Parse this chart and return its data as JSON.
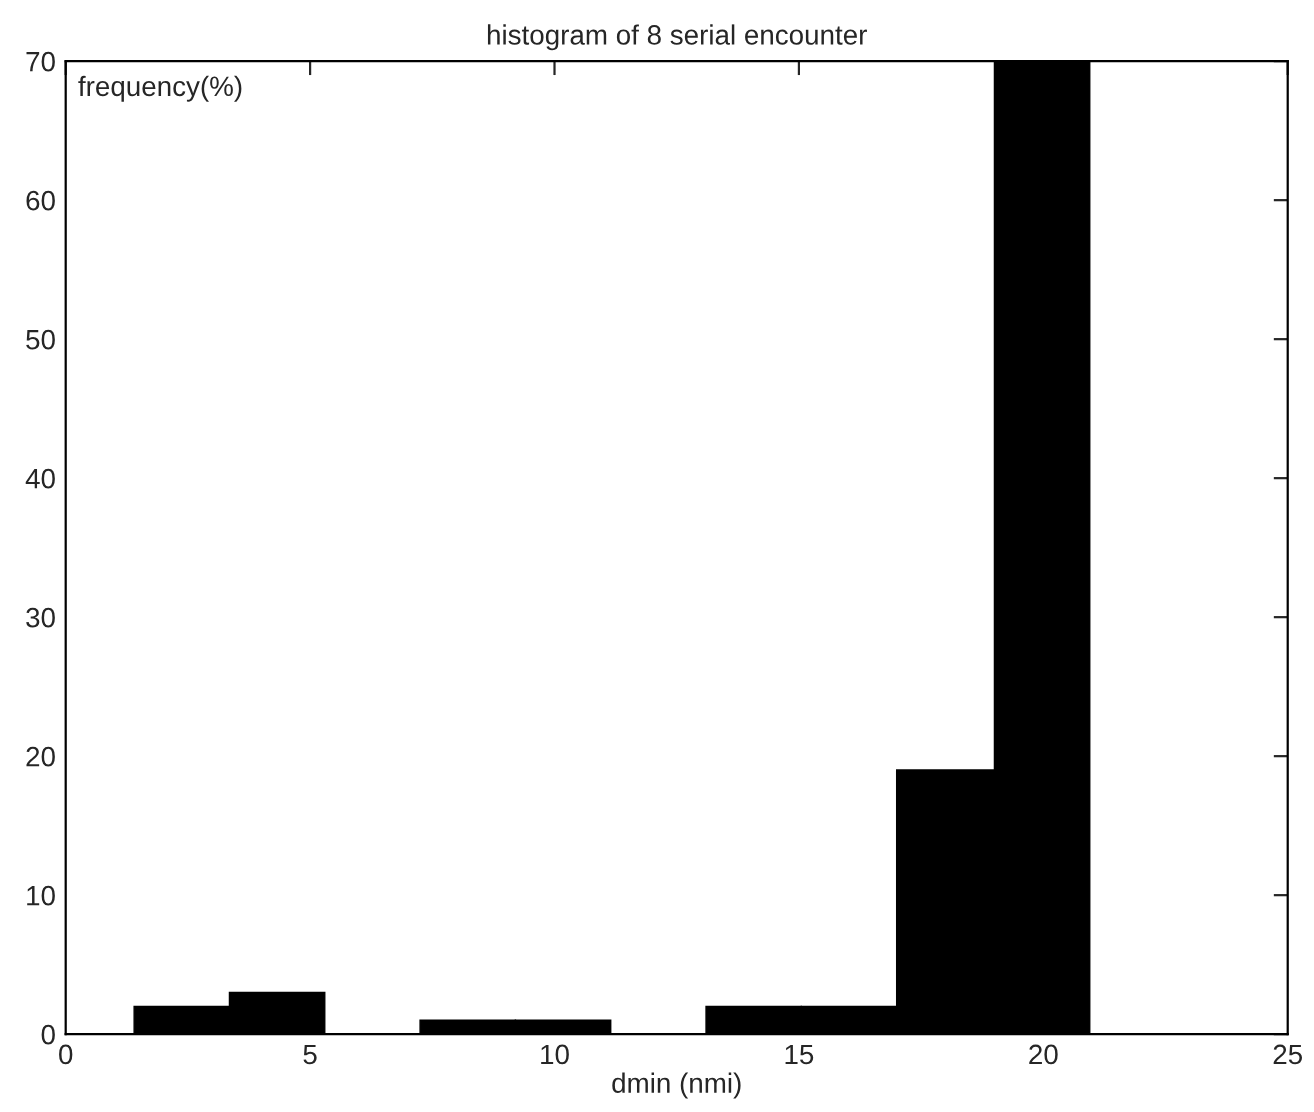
{
  "chart_data": {
    "type": "histogram",
    "title": "histogram of 8 serial encounter",
    "xlabel": "dmin (nmi)",
    "ylabel": "frequency(%)",
    "bins": [
      1.4,
      3.35,
      5.3,
      7.25,
      9.2,
      11.15,
      13.1,
      15.05,
      17.0,
      19.0,
      20.95
    ],
    "values": [
      2,
      3,
      0,
      1,
      1,
      0,
      2,
      2,
      19,
      70
    ],
    "color": "#000000",
    "xlim": [
      0,
      25
    ],
    "xticks": [
      0,
      5,
      10,
      15,
      20,
      25
    ],
    "ylim": [
      0,
      70
    ],
    "yticks": [
      0,
      10,
      20,
      30,
      40,
      50,
      60,
      70
    ],
    "grid": false
  }
}
